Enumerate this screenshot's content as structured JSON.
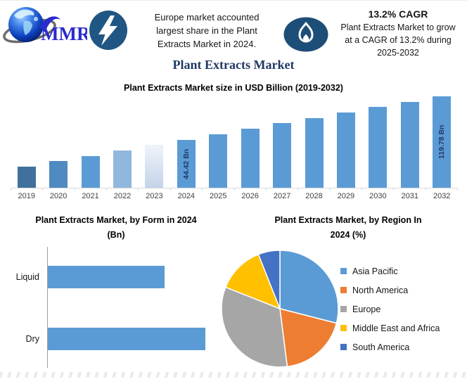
{
  "brand": {
    "logo_text": "MMR"
  },
  "header": {
    "highlight_text": "Europe market accounted\nlargest share in the Plant\nExtracts Market in 2024.",
    "cagr_title": "13.2% CAGR",
    "cagr_text": "Plant Extracts Market to grow\nat a CAGR of 13.2% during\n2025-2032",
    "icons": {
      "bolt": "lightning-icon",
      "flame": "flame-icon",
      "logo": "globe-logo"
    }
  },
  "main_title": "Plant Extracts Market",
  "colors": {
    "navy_title": "#1f3864",
    "primary_bar": "#5b9bd5",
    "bolt_circle": "#1f5683",
    "flame_circle": "#1d4e78",
    "axis_gray": "#d9d9d9",
    "logo_blue": "#2b2bce"
  },
  "chart_data": [
    {
      "type": "bar",
      "title": "Plant Extracts Market size in USD Billion (2019-2032)",
      "categories": [
        "2019",
        "2020",
        "2021",
        "2022",
        "2023",
        "2024",
        "2025",
        "2026",
        "2027",
        "2028",
        "2029",
        "2030",
        "2031",
        "2032"
      ],
      "values": [
        23.89,
        27.04,
        30.61,
        34.65,
        39.23,
        44.42,
        50.28,
        56.92,
        64.43,
        72.94,
        82.56,
        93.46,
        105.8,
        119.78
      ],
      "values_note": "only 2024 (44.42 Bn) and 2032 (119.78 Bn) are labeled; other values estimated from the 13.2% CAGR",
      "data_labels": {
        "2024": "44.42 Bn",
        "2032": "119.78 Bn"
      },
      "bar_colors": {
        "2019": "#40719c",
        "2020": "#4f8ac0",
        "2021": "#5b9bd5",
        "2022": "#92b7dd",
        "2023": "gradient:#eff4fa,#c3d3e9",
        "default": "#5b9bd5"
      },
      "ylabel": "USD Billion",
      "y_axis_hidden": true,
      "gridlines": false,
      "legend": false
    },
    {
      "type": "bar",
      "orientation": "horizontal",
      "title": "Plant Extracts Market, by Form in 2024\n(Bn)",
      "categories": [
        "Liquid",
        "Dry"
      ],
      "values": [
        18.9,
        25.5
      ],
      "values_note": "no value labels shown; estimated from relative bar lengths and 2024 total of 44.42 Bn",
      "color": "#5b9bd5",
      "x_axis_hidden": true,
      "gridlines": false
    },
    {
      "type": "pie",
      "title": "Plant Extracts Market, by Region In\n2024 (%)",
      "slices": [
        {
          "label": "Asia Pacific",
          "value": 29,
          "color": "#5b9bd5"
        },
        {
          "label": "North America",
          "value": 19,
          "color": "#ed7d31"
        },
        {
          "label": "Europe",
          "value": 33,
          "color": "#a6a6a6"
        },
        {
          "label": "Middle East and Africa",
          "value": 13,
          "color": "#ffc000"
        },
        {
          "label": "South America",
          "value": 6,
          "color": "#4472c4"
        }
      ],
      "values_note": "percentages estimated from slice angles",
      "legend_position": "right"
    }
  ]
}
